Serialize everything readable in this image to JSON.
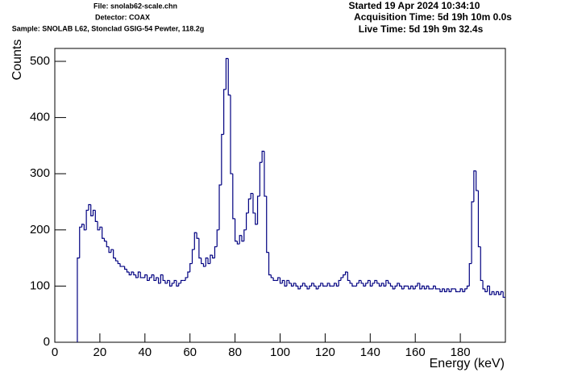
{
  "chart_data": {
    "type": "histogram",
    "header_left": [
      "File: snolab62-scale.chn",
      "Detector: COAX",
      "Sample: SNOLAB L62, Stonclad GSIG-54 Pewter, 118.2g"
    ],
    "header_right": [
      "Started 19 Apr 2024 10:34:10",
      "Acquisition Time: 5d 19h 10m 0.0s",
      "Live Time: 5d 19h 9m 32.4s"
    ],
    "ylabel": "Counts",
    "xlabel": "Energy (keV)",
    "color": "#000080",
    "xlim": [
      0,
      200
    ],
    "ylim": [
      0,
      523
    ],
    "xticks": [
      0,
      20,
      40,
      60,
      80,
      100,
      120,
      140,
      160,
      180
    ],
    "yticks": [
      0,
      100,
      200,
      300,
      400,
      500
    ],
    "bins": [
      10,
      11,
      12,
      13,
      14,
      15,
      16,
      17,
      18,
      19,
      20,
      21,
      22,
      23,
      24,
      25,
      26,
      27,
      28,
      29,
      30,
      31,
      32,
      33,
      34,
      35,
      36,
      37,
      38,
      39,
      40,
      41,
      42,
      43,
      44,
      45,
      46,
      47,
      48,
      49,
      50,
      51,
      52,
      53,
      54,
      55,
      56,
      57,
      58,
      59,
      60,
      61,
      62,
      63,
      64,
      65,
      66,
      67,
      68,
      69,
      70,
      71,
      72,
      73,
      74,
      75,
      76,
      77,
      78,
      79,
      80,
      81,
      82,
      83,
      84,
      85,
      86,
      87,
      88,
      89,
      90,
      91,
      92,
      93,
      94,
      95,
      96,
      97,
      98,
      99,
      100,
      101,
      102,
      103,
      104,
      105,
      106,
      107,
      108,
      109,
      110,
      111,
      112,
      113,
      114,
      115,
      116,
      117,
      118,
      119,
      120,
      121,
      122,
      123,
      124,
      125,
      126,
      127,
      128,
      129,
      130,
      131,
      132,
      133,
      134,
      135,
      136,
      137,
      138,
      139,
      140,
      141,
      142,
      143,
      144,
      145,
      146,
      147,
      148,
      149,
      150,
      151,
      152,
      153,
      154,
      155,
      156,
      157,
      158,
      159,
      160,
      161,
      162,
      163,
      164,
      165,
      166,
      167,
      168,
      169,
      170,
      171,
      172,
      173,
      174,
      175,
      176,
      177,
      178,
      179,
      180,
      181,
      182,
      183,
      184,
      185,
      186,
      187,
      188,
      189,
      190,
      191,
      192,
      193,
      194,
      195,
      196,
      197,
      198,
      199,
      200
    ],
    "values": [
      150,
      205,
      210,
      200,
      235,
      245,
      225,
      235,
      215,
      200,
      205,
      185,
      180,
      170,
      160,
      165,
      150,
      145,
      140,
      135,
      135,
      130,
      125,
      120,
      125,
      120,
      115,
      125,
      115,
      115,
      120,
      110,
      115,
      120,
      110,
      115,
      105,
      120,
      110,
      105,
      110,
      100,
      105,
      110,
      100,
      105,
      110,
      110,
      115,
      125,
      140,
      165,
      195,
      185,
      150,
      140,
      135,
      150,
      140,
      155,
      150,
      170,
      200,
      280,
      370,
      450,
      505,
      440,
      300,
      220,
      180,
      175,
      190,
      180,
      200,
      230,
      255,
      265,
      230,
      210,
      260,
      320,
      340,
      260,
      160,
      120,
      115,
      110,
      110,
      115,
      105,
      110,
      100,
      110,
      105,
      100,
      105,
      100,
      95,
      100,
      105,
      100,
      95,
      100,
      105,
      100,
      95,
      100,
      105,
      100,
      100,
      105,
      100,
      100,
      105,
      100,
      110,
      115,
      120,
      125,
      110,
      105,
      100,
      100,
      105,
      110,
      105,
      100,
      105,
      110,
      100,
      105,
      110,
      105,
      100,
      105,
      100,
      110,
      105,
      100,
      95,
      100,
      105,
      100,
      95,
      100,
      100,
      95,
      100,
      95,
      100,
      105,
      95,
      100,
      95,
      100,
      95,
      95,
      100,
      95,
      95,
      90,
      95,
      90,
      95,
      90,
      95,
      95,
      90,
      90,
      95,
      90,
      95,
      100,
      140,
      250,
      305,
      270,
      170,
      110,
      95,
      90,
      100,
      85,
      90,
      85,
      90,
      85,
      90,
      80
    ]
  }
}
